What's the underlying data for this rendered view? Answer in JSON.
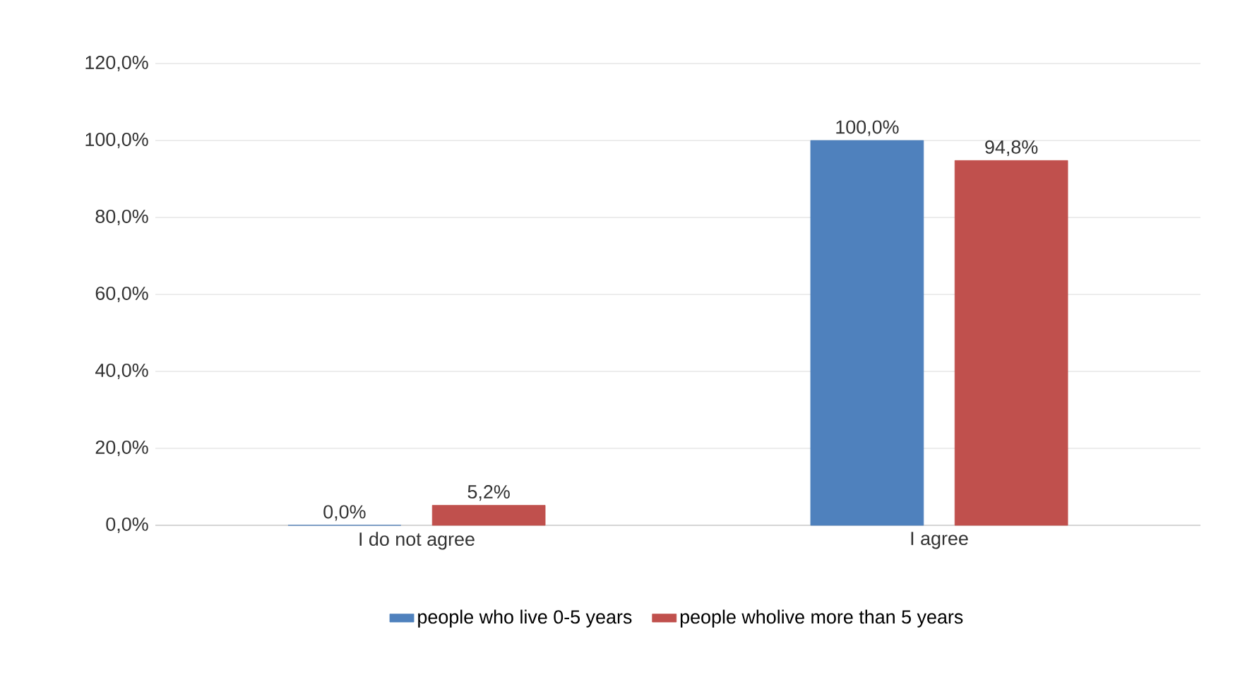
{
  "chart_data": {
    "type": "bar",
    "categories": [
      "I do not agree",
      "I agree"
    ],
    "series": [
      {
        "name": "people who live 0-5 years",
        "color": "#4f81bd",
        "values": [
          0,
          100
        ],
        "value_labels": [
          "0,0%",
          "100,0%"
        ]
      },
      {
        "name": "people wholive more than 5 years",
        "color": "#c0504d",
        "values": [
          5.2,
          94.8
        ],
        "value_labels": [
          "5,2%",
          "94,8%"
        ]
      }
    ],
    "ylim": [
      0,
      120
    ],
    "yticks": [
      {
        "value": 0,
        "label": "0,0%"
      },
      {
        "value": 20,
        "label": "20,0%"
      },
      {
        "value": 40,
        "label": "40,0%"
      },
      {
        "value": 60,
        "label": "60,0%"
      },
      {
        "value": 80,
        "label": "80,0%"
      },
      {
        "value": 100,
        "label": "100,0%"
      },
      {
        "value": 120,
        "label": "120,0%"
      }
    ],
    "grid": "y",
    "legend": "bottom"
  }
}
